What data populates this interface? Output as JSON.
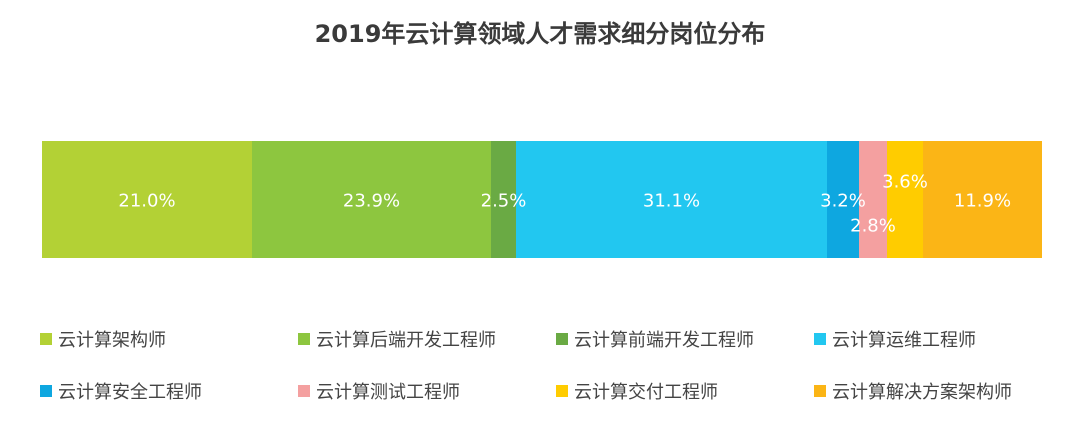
{
  "chart_data": {
    "type": "bar",
    "orientation": "horizontal-stacked-100",
    "title": "2019年云计算领域人才需求细分岗位分布",
    "series": [
      {
        "name": "云计算架构师",
        "value": 21.0,
        "label": "21.0%",
        "color": "#b3d135"
      },
      {
        "name": "云计算后端开发工程师",
        "value": 23.9,
        "label": "23.9%",
        "color": "#8dc63f"
      },
      {
        "name": "云计算前端开发工程师",
        "value": 2.5,
        "label": "2.5%",
        "color": "#6aaa44"
      },
      {
        "name": "云计算运维工程师",
        "value": 31.1,
        "label": "31.1%",
        "color": "#22c7f0"
      },
      {
        "name": "云计算安全工程师",
        "value": 3.2,
        "label": "3.2%",
        "color": "#0ea7e0"
      },
      {
        "name": "云计算测试工程师",
        "value": 2.8,
        "label": "2.8%",
        "color": "#f4a0a0"
      },
      {
        "name": "云计算交付工程师",
        "value": 3.6,
        "label": "3.6%",
        "color": "#ffcc00"
      },
      {
        "name": "云计算解决方案架构师",
        "value": 11.9,
        "label": "11.9%",
        "color": "#fbb516"
      }
    ],
    "legend_position": "bottom",
    "grid": false
  }
}
